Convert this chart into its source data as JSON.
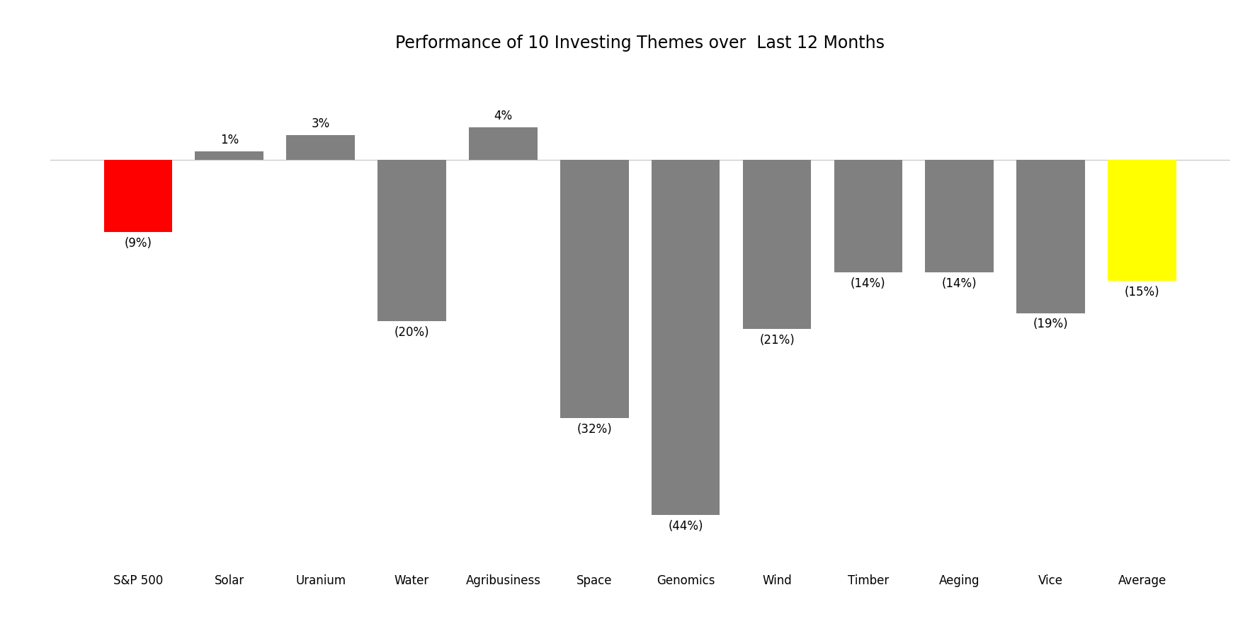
{
  "title": "Performance of 10 Investing Themes over  Last 12 Months",
  "categories": [
    "S&P 500",
    "Solar",
    "Uranium",
    "Water",
    "Agribusiness",
    "Space",
    "Genomics",
    "Wind",
    "Timber",
    "Aeging",
    "Vice",
    "Average"
  ],
  "values": [
    -9,
    1,
    3,
    -20,
    4,
    -32,
    -44,
    -21,
    -14,
    -14,
    -19,
    -15
  ],
  "bar_colors": [
    "#ff0000",
    "#808080",
    "#808080",
    "#808080",
    "#808080",
    "#808080",
    "#808080",
    "#808080",
    "#808080",
    "#808080",
    "#808080",
    "#ffff00"
  ],
  "ylim": [
    -50,
    12
  ],
  "zero_line_color": "#cccccc",
  "background_color": "#ffffff",
  "title_fontsize": 17,
  "tick_fontsize": 12,
  "label_fontsize": 12,
  "bar_width": 0.75
}
